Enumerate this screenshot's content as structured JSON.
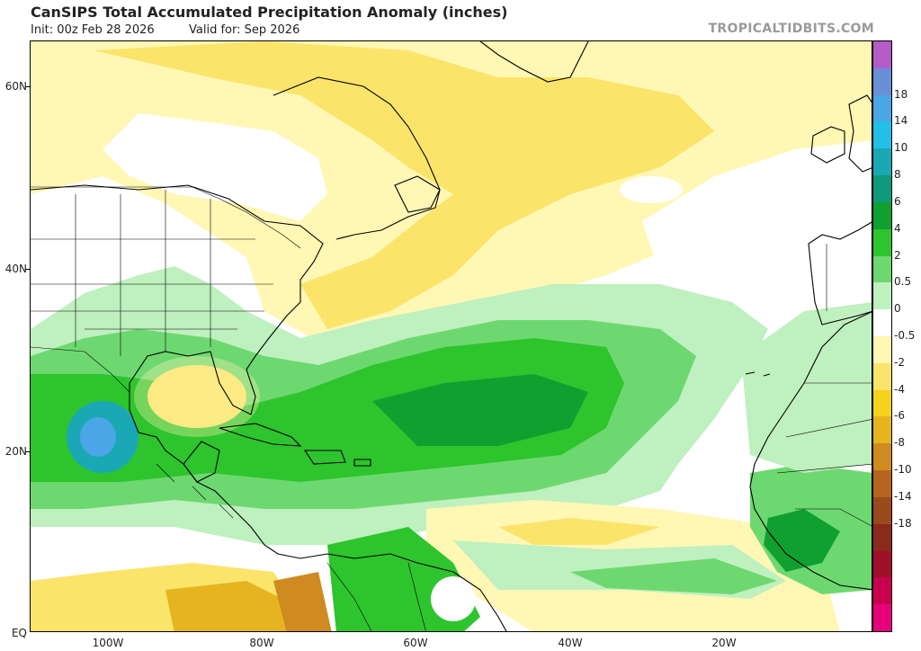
{
  "header": {
    "title": "CanSIPS Total Accumulated Precipitation Anomaly (inches)",
    "init": "Init: 00z Feb 28 2026",
    "valid": "Valid for: Sep 2026",
    "brand": "TROPICALTIDBITS.COM"
  },
  "axes": {
    "lat_labels": [
      "60N",
      "40N",
      "20N",
      "EQ"
    ],
    "lon_labels": [
      "100W",
      "80W",
      "60W",
      "40W",
      "20W"
    ]
  },
  "colorbar": {
    "labels": [
      "18",
      "14",
      "10",
      "8",
      "6",
      "4",
      "2",
      "0.5",
      "0",
      "-0.5",
      "-2",
      "-4",
      "-6",
      "-8",
      "-10",
      "-14",
      "-18"
    ],
    "colors": [
      "#b45cc8",
      "#6a8fd8",
      "#4aa6e6",
      "#22bfe6",
      "#1aa8b4",
      "#0e9a7a",
      "#10a030",
      "#2ec42e",
      "#6ed870",
      "#bff0bf",
      "#ffffff",
      "#fff7b4",
      "#fbe46a",
      "#f5d21c",
      "#e6b41e",
      "#cf8a22",
      "#b5651d",
      "#9b4a1c",
      "#8a2a1a",
      "#a0102a",
      "#c8004e",
      "#e8007a"
    ]
  },
  "colors": {
    "land_border": "#000000",
    "wet_strong": "#10a030",
    "wet_mid": "#2ec42e",
    "wet_light": "#6ed870",
    "wet_faint": "#bff0bf",
    "dry_faint": "#fff7b4",
    "dry_light": "#fbe46a",
    "dry_mid": "#f5d21c",
    "dry_strong": "#cf8a22"
  }
}
